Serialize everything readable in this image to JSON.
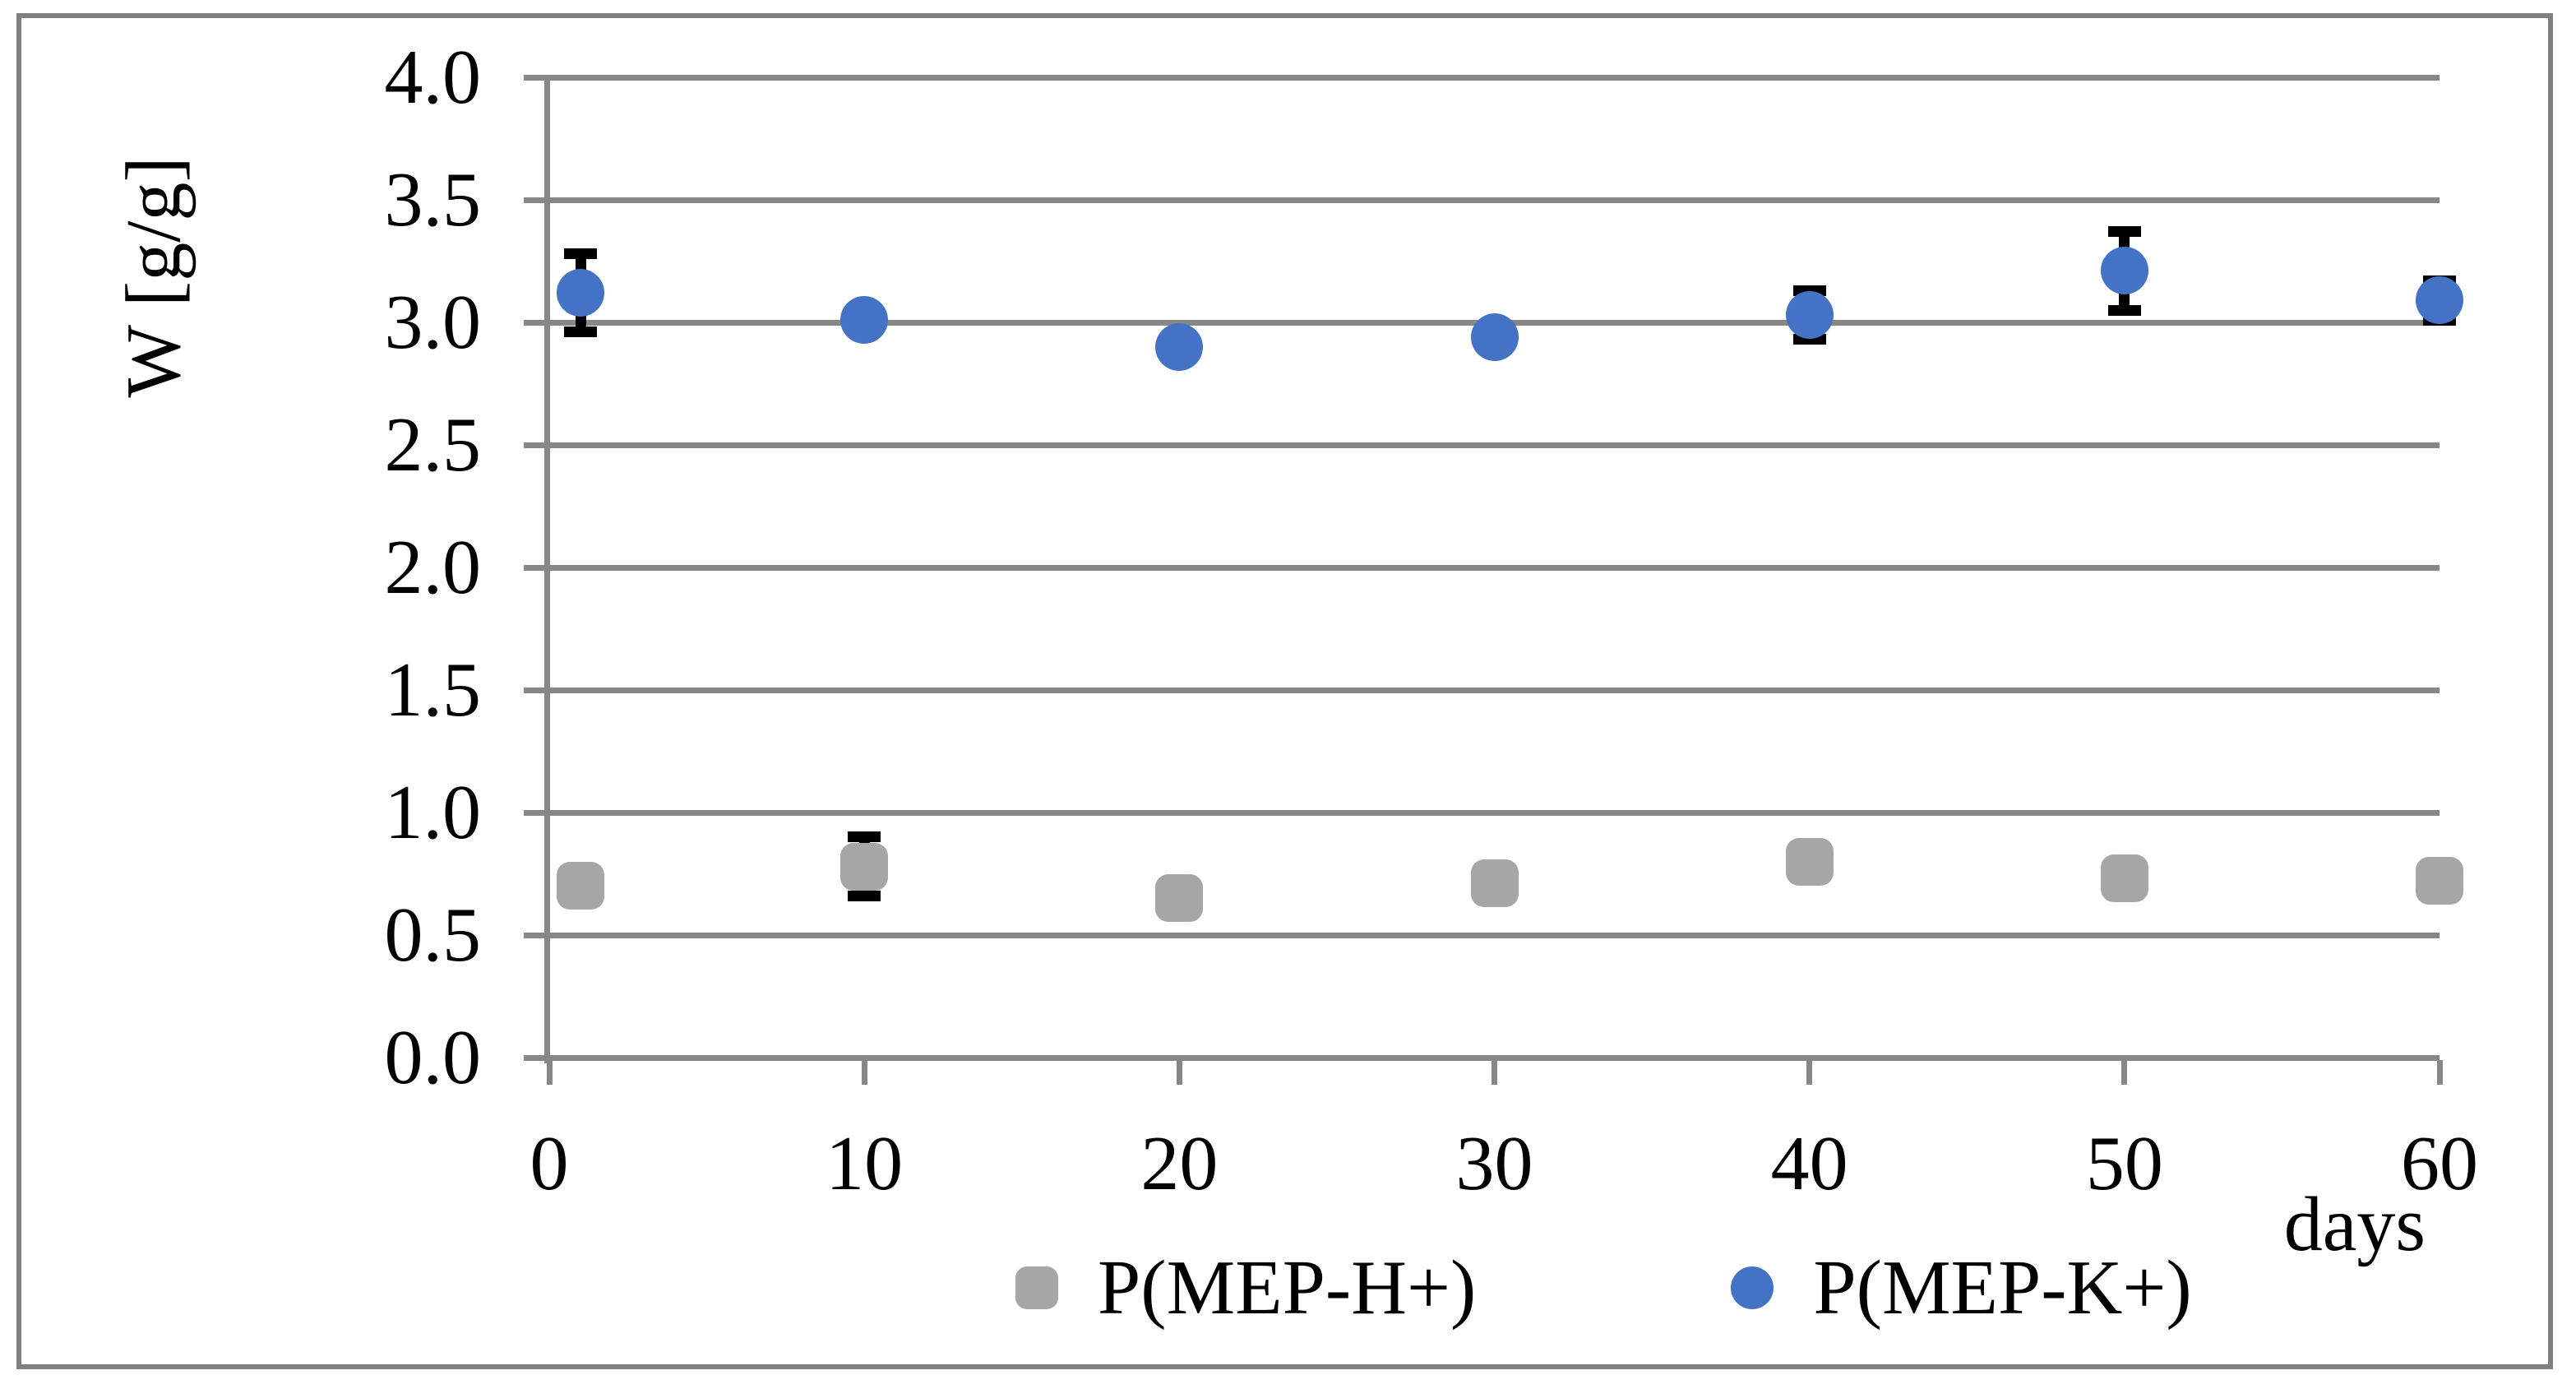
{
  "figure": {
    "y_axis_title": "W [g/g]",
    "x_axis_title": "days"
  },
  "colors": {
    "series_gray": "#a6a6a6",
    "series_blue": "#4472c4",
    "gridline": "#878787",
    "error_bar": "#000000",
    "outer_border": "#808080"
  },
  "legend": {
    "entries": [
      {
        "label": "P(MEP-H+)",
        "marker": "rounded-square",
        "color": "#a6a6a6"
      },
      {
        "label": "P(MEP-K+)",
        "marker": "circle",
        "color": "#4472c4"
      }
    ]
  },
  "chart_data": {
    "type": "scatter",
    "title": "",
    "xlabel": "days",
    "ylabel": "W [g/g]",
    "xlim": [
      0,
      60
    ],
    "ylim": [
      0.0,
      4.0
    ],
    "x_ticks": [
      "0",
      "10",
      "20",
      "30",
      "40",
      "50",
      "60"
    ],
    "x_tick_values": [
      0,
      10,
      20,
      30,
      40,
      50,
      60
    ],
    "y_ticks": [
      "0.0",
      "0.5",
      "1.0",
      "1.5",
      "2.0",
      "2.5",
      "3.0",
      "3.5",
      "4.0"
    ],
    "y_tick_values": [
      0.0,
      0.5,
      1.0,
      1.5,
      2.0,
      2.5,
      3.0,
      3.5,
      4.0
    ],
    "grid": "horizontal",
    "legend_position": "bottom-center",
    "x": [
      1,
      10,
      20,
      30,
      40,
      50,
      60
    ],
    "series": [
      {
        "name": "P(MEP-H+)",
        "color": "#a6a6a6",
        "marker": "rounded-square",
        "values": [
          0.7,
          0.78,
          0.65,
          0.71,
          0.8,
          0.73,
          0.72
        ],
        "errors": [
          null,
          0.12,
          null,
          null,
          null,
          null,
          null
        ]
      },
      {
        "name": "P(MEP-K+)",
        "color": "#4472c4",
        "marker": "circle",
        "values": [
          3.12,
          3.01,
          2.9,
          2.94,
          3.03,
          3.21,
          3.09
        ],
        "errors": [
          0.16,
          null,
          null,
          null,
          0.1,
          0.16,
          0.08
        ]
      }
    ]
  }
}
